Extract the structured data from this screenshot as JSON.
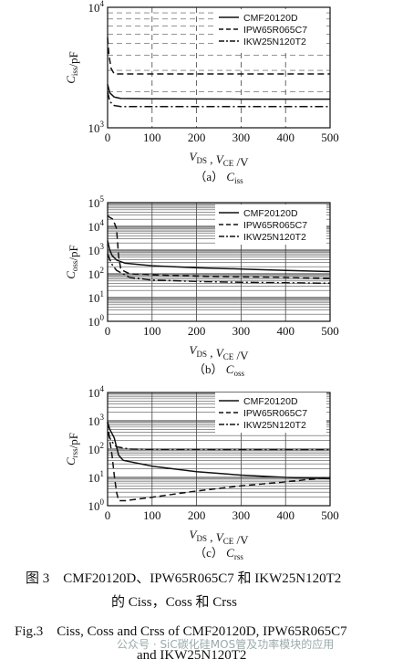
{
  "figure": {
    "caption_cn_line1": "图 3　CMF20120D、IPW65R065C7 和 IKW25N120T2",
    "caption_cn_line2": "的 Ciss，Coss 和 Crss",
    "caption_en_line1": "Fig.3　Ciss, Coss and Crss of CMF20120D, IPW65R065C7",
    "caption_en_line2": "and IKW25N120T2",
    "watermark": "公众号 · SiC碳化硅MOS管及功率模块的应用"
  },
  "chart_data": [
    {
      "type": "line",
      "subtitle": "（a） Ciss",
      "ylabel": "Ciss/pF",
      "xlabel": "VDS , VCE /V",
      "y_scale": "log",
      "xlim": [
        0,
        500
      ],
      "ylim": [
        1000,
        10000
      ],
      "xticks": [
        "0",
        "100",
        "200",
        "300",
        "400",
        "500"
      ],
      "yticks": [
        "10^3",
        "10^4"
      ],
      "grid": "dashed",
      "legend_position": "top-right",
      "series": [
        {
          "name": "CMF20120D",
          "style": "solid",
          "x": [
            0,
            5,
            15,
            30,
            100,
            300,
            500
          ],
          "y": [
            2300,
            1950,
            1800,
            1750,
            1740,
            1730,
            1730
          ]
        },
        {
          "name": "IPW65R065C7",
          "style": "dashed",
          "x": [
            0,
            3,
            8,
            15,
            100,
            300,
            500
          ],
          "y": [
            5600,
            4000,
            3100,
            2800,
            2800,
            2800,
            2800
          ]
        },
        {
          "name": "IKW25N120T2",
          "style": "dashdot",
          "x": [
            0,
            5,
            15,
            30,
            100,
            300,
            500
          ],
          "y": [
            2000,
            1650,
            1530,
            1500,
            1500,
            1500,
            1500
          ]
        }
      ]
    },
    {
      "type": "line",
      "subtitle": "（b） Coss",
      "ylabel": "Coss/pF",
      "xlabel": "VDS , VCE /V",
      "y_scale": "log",
      "xlim": [
        0,
        500
      ],
      "ylim": [
        1,
        100000
      ],
      "xticks": [
        "0",
        "100",
        "200",
        "300",
        "400",
        "500"
      ],
      "yticks": [
        "10^0",
        "10^1",
        "10^2",
        "10^3",
        "10^4",
        "10^5"
      ],
      "grid": "solid",
      "legend_position": "top-right",
      "series": [
        {
          "name": "CMF20120D",
          "style": "solid",
          "x": [
            0,
            5,
            10,
            20,
            40,
            100,
            200,
            300,
            400,
            500
          ],
          "y": [
            2500,
            1000,
            600,
            380,
            280,
            220,
            180,
            160,
            140,
            125
          ]
        },
        {
          "name": "IPW65R065C7",
          "style": "dashed",
          "x": [
            0,
            5,
            12,
            20,
            25,
            30,
            50,
            100,
            200,
            300,
            400,
            500
          ],
          "y": [
            28000,
            24000,
            20000,
            8000,
            500,
            150,
            100,
            90,
            80,
            75,
            70,
            65
          ]
        },
        {
          "name": "IKW25N120T2",
          "style": "dashdot",
          "x": [
            0,
            5,
            10,
            20,
            50,
            100,
            200,
            300,
            400,
            500
          ],
          "y": [
            700,
            400,
            250,
            140,
            70,
            55,
            48,
            44,
            42,
            40
          ]
        }
      ]
    },
    {
      "type": "line",
      "subtitle": "（c） Crss",
      "ylabel": "Crss/pF",
      "xlabel": "VDS , VCE /V",
      "y_scale": "log",
      "xlim": [
        0,
        500
      ],
      "ylim": [
        1,
        10000
      ],
      "xticks": [
        "0",
        "100",
        "200",
        "300",
        "400",
        "500"
      ],
      "yticks": [
        "10^0",
        "10^1",
        "10^2",
        "10^3",
        "10^4"
      ],
      "grid": "solid",
      "legend_position": "top-right",
      "series": [
        {
          "name": "CMF20120D",
          "style": "solid",
          "x": [
            0,
            5,
            15,
            25,
            35,
            100,
            200,
            300,
            400,
            500
          ],
          "y": [
            900,
            500,
            250,
            60,
            40,
            25,
            16,
            12,
            10,
            9
          ]
        },
        {
          "name": "IPW65R065C7",
          "style": "dashed",
          "x": [
            0,
            5,
            10,
            15,
            20,
            25,
            40,
            100,
            200,
            300,
            400,
            500
          ],
          "y": [
            900,
            200,
            60,
            12,
            3,
            1.5,
            1.5,
            2,
            3.3,
            5,
            7,
            10
          ]
        },
        {
          "name": "IKW25N120T2",
          "style": "dashdot",
          "x": [
            0,
            5,
            10,
            20,
            50,
            100,
            200,
            300,
            400,
            500
          ],
          "y": [
            400,
            250,
            180,
            120,
            100,
            98,
            97,
            96,
            96,
            96
          ]
        }
      ]
    }
  ]
}
